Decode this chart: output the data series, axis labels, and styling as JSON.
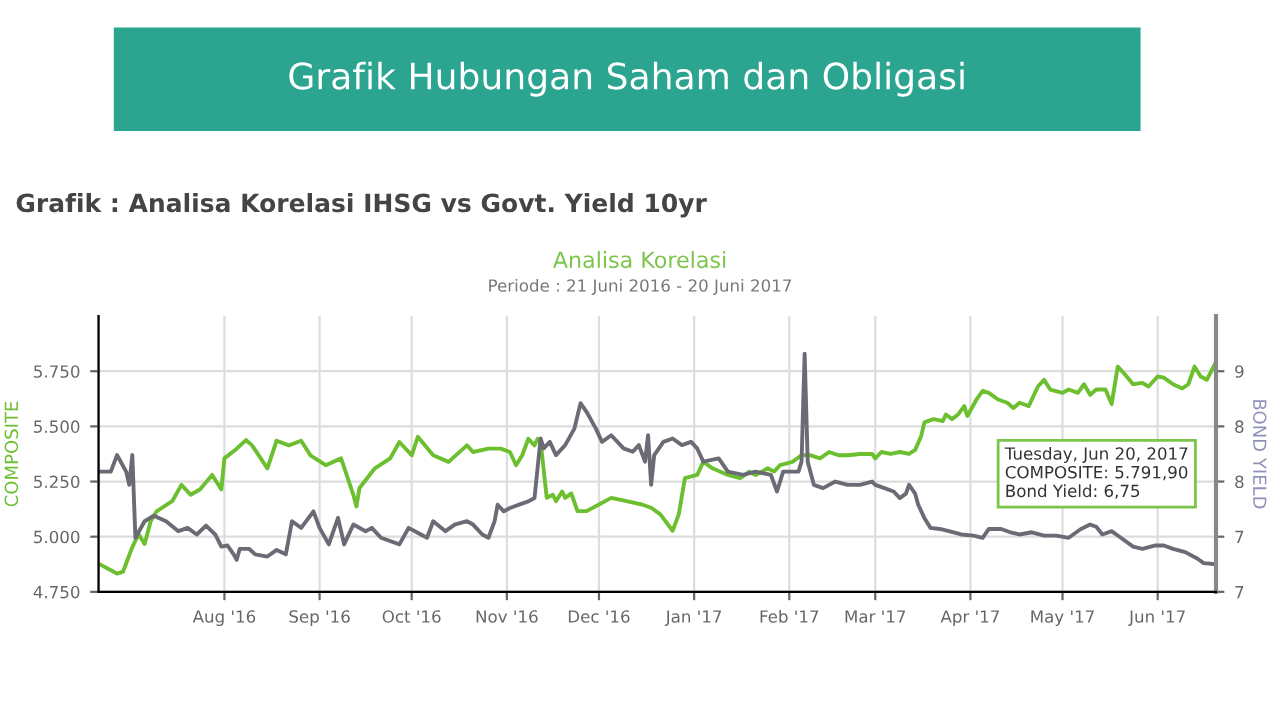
{
  "chart_data": {
    "type": "line",
    "title": "Analisa Korelasi",
    "subtitle": "Periode : 21 Juni 2016 - 20 Juni 2017",
    "ylabel": "COMPOSITE",
    "y2label": "BOND YIELD",
    "annotations": [
      "Grafik Hubungan Saham dan Obligasi",
      "Grafik : Analisa Korelasi IHSG vs Govt. Yield 10yr",
      "Tuesday, Jun 20, 2017\nCOMPOSITE: 5.791,90\nBond Yield: 6,75"
    ],
    "series": [
      {
        "color": "#6cbf2f",
        "x": [
          "2016-06-21",
          "2016-06-27",
          "2016-06-29",
          "2016-07-02",
          "2016-07-04",
          "2016-07-06",
          "2016-07-08",
          "2016-07-10",
          "2016-07-15",
          "2016-07-18",
          "2016-07-21",
          "2016-07-24",
          "2016-07-28",
          "2016-07-31",
          "2016-08-01",
          "2016-08-05",
          "2016-08-08",
          "2016-08-10",
          "2016-08-15",
          "2016-08-18",
          "2016-08-22",
          "2016-08-26",
          "2016-08-29",
          "2016-09-03",
          "2016-09-08",
          "2016-09-12",
          "2016-09-13",
          "2016-09-14",
          "2016-09-19",
          "2016-09-24",
          "2016-09-27",
          "2016-10-01",
          "2016-10-03",
          "2016-10-08",
          "2016-10-13",
          "2016-10-19",
          "2016-10-21",
          "2016-10-26",
          "2016-10-30",
          "2016-11-02",
          "2016-11-04",
          "2016-11-06",
          "2016-11-08",
          "2016-11-10",
          "2016-11-11",
          "2016-11-12",
          "2016-11-14",
          "2016-11-16",
          "2016-11-17",
          "2016-11-19",
          "2016-11-20",
          "2016-11-22",
          "2016-11-24",
          "2016-11-27",
          "2016-12-01",
          "2016-12-05",
          "2016-12-10",
          "2016-12-15",
          "2016-12-18",
          "2016-12-21",
          "2016-12-25",
          "2016-12-27",
          "2016-12-29",
          "2017-01-02",
          "2017-01-04",
          "2017-01-07",
          "2017-01-12",
          "2017-01-16",
          "2017-01-19",
          "2017-01-21",
          "2017-01-25",
          "2017-01-27",
          "2017-01-29",
          "2017-02-02",
          "2017-02-05",
          "2017-02-08",
          "2017-02-11",
          "2017-02-14",
          "2017-02-17",
          "2017-02-20",
          "2017-02-24",
          "2017-02-28",
          "2017-03-01",
          "2017-03-03",
          "2017-03-06",
          "2017-03-09",
          "2017-03-12",
          "2017-03-14",
          "2017-03-16",
          "2017-03-17",
          "2017-03-20",
          "2017-03-23",
          "2017-03-24",
          "2017-03-26",
          "2017-03-28",
          "2017-03-30",
          "2017-03-31",
          "2017-04-03",
          "2017-04-05",
          "2017-04-07",
          "2017-04-10",
          "2017-04-13",
          "2017-04-15",
          "2017-04-17",
          "2017-04-20",
          "2017-04-23",
          "2017-04-25",
          "2017-04-27",
          "2017-05-01",
          "2017-05-03",
          "2017-05-06",
          "2017-05-08",
          "2017-05-10",
          "2017-05-12",
          "2017-05-15",
          "2017-05-17",
          "2017-05-19",
          "2017-05-21",
          "2017-05-24",
          "2017-05-27",
          "2017-05-29",
          "2017-06-01",
          "2017-06-03",
          "2017-06-06",
          "2017-06-09",
          "2017-06-11",
          "2017-06-13",
          "2017-06-15",
          "2017-06-17",
          "2017-06-20"
        ],
        "values": [
          4878,
          4833,
          4842,
          4953,
          5012,
          4967,
          5071,
          5116,
          5161,
          5235,
          5190,
          5214,
          5280,
          5214,
          5355,
          5399,
          5438,
          5414,
          5310,
          5435,
          5414,
          5435,
          5369,
          5324,
          5355,
          5190,
          5137,
          5221,
          5310,
          5355,
          5429,
          5369,
          5453,
          5369,
          5339,
          5414,
          5384,
          5399,
          5399,
          5384,
          5324,
          5369,
          5444,
          5414,
          5444,
          5429,
          5176,
          5190,
          5161,
          5205,
          5176,
          5196,
          5116,
          5116,
          5146,
          5176,
          5161,
          5146,
          5131,
          5101,
          5027,
          5101,
          5265,
          5280,
          5339,
          5310,
          5280,
          5265,
          5295,
          5280,
          5310,
          5295,
          5324,
          5339,
          5369,
          5369,
          5355,
          5384,
          5369,
          5369,
          5375,
          5375,
          5355,
          5384,
          5375,
          5384,
          5375,
          5393,
          5458,
          5518,
          5533,
          5524,
          5554,
          5533,
          5554,
          5592,
          5547,
          5622,
          5661,
          5652,
          5622,
          5607,
          5583,
          5607,
          5592,
          5681,
          5711,
          5667,
          5652,
          5667,
          5652,
          5691,
          5643,
          5667,
          5667,
          5601,
          5771,
          5741,
          5691,
          5697,
          5681,
          5726,
          5721,
          5691,
          5672,
          5691,
          5771,
          5726,
          5711,
          5791.9
        ]
      },
      {
        "color": "#6b6b76",
        "axis": "y2",
        "x": [
          "2016-06-21",
          "2016-06-25",
          "2016-06-27",
          "2016-06-30",
          "2016-07-01",
          "2016-07-02",
          "2016-07-03",
          "2016-07-06",
          "2016-07-09",
          "2016-07-13",
          "2016-07-17",
          "2016-07-20",
          "2016-07-23",
          "2016-07-26",
          "2016-07-29",
          "2016-07-31",
          "2016-08-02",
          "2016-08-04",
          "2016-08-05",
          "2016-08-06",
          "2016-08-09",
          "2016-08-11",
          "2016-08-15",
          "2016-08-18",
          "2016-08-21",
          "2016-08-23",
          "2016-08-26",
          "2016-08-30",
          "2016-09-01",
          "2016-09-04",
          "2016-09-07",
          "2016-09-09",
          "2016-09-12",
          "2016-09-16",
          "2016-09-18",
          "2016-09-21",
          "2016-09-27",
          "2016-09-30",
          "2016-10-04",
          "2016-10-06",
          "2016-10-08",
          "2016-10-12",
          "2016-10-15",
          "2016-10-19",
          "2016-10-21",
          "2016-10-24",
          "2016-10-26",
          "2016-10-28",
          "2016-10-29",
          "2016-10-31",
          "2016-11-02",
          "2016-11-05",
          "2016-11-08",
          "2016-11-10",
          "2016-11-12",
          "2016-11-13",
          "2016-11-15",
          "2016-11-17",
          "2016-11-20",
          "2016-11-23",
          "2016-11-25",
          "2016-11-27",
          "2016-11-30",
          "2016-12-02",
          "2016-12-05",
          "2016-12-09",
          "2016-12-12",
          "2016-12-14",
          "2016-12-16",
          "2016-12-17",
          "2016-12-18",
          "2016-12-19",
          "2016-12-22",
          "2016-12-25",
          "2016-12-28",
          "2016-12-31",
          "2017-01-02",
          "2017-01-04",
          "2017-01-09",
          "2017-01-12",
          "2017-01-17",
          "2017-01-21",
          "2017-01-26",
          "2017-01-28",
          "2017-01-30",
          "2017-02-04",
          "2017-02-05",
          "2017-02-06",
          "2017-02-07",
          "2017-02-09",
          "2017-02-12",
          "2017-02-16",
          "2017-02-20",
          "2017-02-24",
          "2017-02-28",
          "2017-03-01",
          "2017-03-04",
          "2017-03-07",
          "2017-03-09",
          "2017-03-11",
          "2017-03-12",
          "2017-03-14",
          "2017-03-15",
          "2017-03-17",
          "2017-03-19",
          "2017-03-22",
          "2017-03-25",
          "2017-03-29",
          "2017-04-02",
          "2017-04-05",
          "2017-04-07",
          "2017-04-11",
          "2017-04-14",
          "2017-04-17",
          "2017-04-21",
          "2017-04-25",
          "2017-04-29",
          "2017-05-03",
          "2017-05-07",
          "2017-05-10",
          "2017-05-12",
          "2017-05-14",
          "2017-05-17",
          "2017-05-20",
          "2017-05-24",
          "2017-05-27",
          "2017-05-31",
          "2017-06-03",
          "2017-06-06",
          "2017-06-10",
          "2017-06-14",
          "2017-06-16",
          "2017-06-20"
        ],
        "values": [
          7.59,
          7.59,
          7.74,
          7.59,
          7.47,
          7.74,
          6.99,
          7.14,
          7.19,
          7.14,
          7.05,
          7.08,
          7.02,
          7.1,
          7.02,
          6.91,
          6.92,
          6.84,
          6.79,
          6.89,
          6.89,
          6.84,
          6.82,
          6.88,
          6.84,
          7.14,
          7.08,
          7.23,
          7.08,
          6.93,
          7.17,
          6.93,
          7.11,
          7.05,
          7.08,
          6.99,
          6.93,
          7.08,
          7.02,
          6.99,
          7.14,
          7.05,
          7.11,
          7.14,
          7.11,
          7.02,
          6.99,
          7.14,
          7.29,
          7.23,
          7.26,
          7.29,
          7.32,
          7.35,
          7.89,
          7.8,
          7.86,
          7.74,
          7.83,
          7.98,
          8.21,
          8.13,
          7.98,
          7.86,
          7.92,
          7.8,
          7.77,
          7.83,
          7.68,
          7.92,
          7.47,
          7.74,
          7.86,
          7.89,
          7.83,
          7.86,
          7.8,
          7.68,
          7.71,
          7.59,
          7.56,
          7.59,
          7.56,
          7.41,
          7.59,
          7.59,
          7.68,
          8.66,
          7.68,
          7.47,
          7.44,
          7.5,
          7.47,
          7.47,
          7.5,
          7.47,
          7.44,
          7.41,
          7.35,
          7.39,
          7.47,
          7.39,
          7.29,
          7.17,
          7.08,
          7.07,
          7.05,
          7.02,
          7.01,
          6.99,
          7.07,
          7.07,
          7.04,
          7.02,
          7.04,
          7.01,
          7.01,
          6.99,
          7.07,
          7.11,
          7.09,
          7.02,
          7.05,
          6.99,
          6.91,
          6.89,
          6.92,
          6.92,
          6.89,
          6.86,
          6.8,
          6.76,
          6.75
        ]
      }
    ],
    "xlim": [
      "2016-06-21",
      "2017-06-20"
    ],
    "xticks": [
      {
        "value": "2016-08-01",
        "label": "Aug '16"
      },
      {
        "value": "2016-09-01",
        "label": "Sep '16"
      },
      {
        "value": "2016-10-01",
        "label": "Oct '16"
      },
      {
        "value": "2016-11-01",
        "label": "Nov '16"
      },
      {
        "value": "2016-12-01",
        "label": "Dec '16"
      },
      {
        "value": "2017-01-01",
        "label": "Jan '17"
      },
      {
        "value": "2017-02-01",
        "label": "Feb '17"
      },
      {
        "value": "2017-03-01",
        "label": "Mar '17"
      },
      {
        "value": "2017-04-01",
        "label": "Apr '17"
      },
      {
        "value": "2017-05-01",
        "label": "May '17"
      },
      {
        "value": "2017-06-01",
        "label": "Jun '17"
      }
    ],
    "ylim": [
      4750,
      6000
    ],
    "yticks": [
      {
        "value": 4750,
        "label": "4.750"
      },
      {
        "value": 5000,
        "label": "5.000"
      },
      {
        "value": 5250,
        "label": "5.250"
      },
      {
        "value": 5500,
        "label": "5.500"
      },
      {
        "value": 5750,
        "label": "5.750"
      }
    ],
    "y2lim": [
      6.5,
      9.0
    ],
    "y2ticks": [
      {
        "value": 6.5,
        "label": "7"
      },
      {
        "value": 7,
        "label": "7"
      },
      {
        "value": 7.5,
        "label": "8"
      },
      {
        "value": 8,
        "label": "8"
      },
      {
        "value": 8.5,
        "label": "9"
      }
    ],
    "grid": true,
    "marker": "none",
    "line_style": "solid",
    "legend": false
  }
}
